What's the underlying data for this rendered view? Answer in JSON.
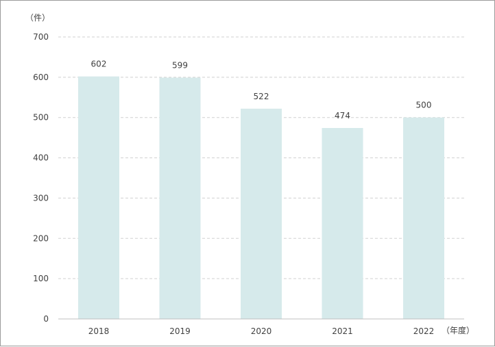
{
  "chart_data": {
    "type": "bar",
    "categories": [
      "2018",
      "2019",
      "2020",
      "2021",
      "2022"
    ],
    "values": [
      602,
      599,
      522,
      474,
      500
    ],
    "data_labels": [
      "602",
      "599",
      "522",
      "474",
      "500"
    ],
    "y_unit": "（件）",
    "x_unit": "（年度）",
    "ylim": [
      0,
      700
    ],
    "yticks": [
      "0",
      "100",
      "200",
      "300",
      "400",
      "500",
      "600",
      "700"
    ],
    "grid": true,
    "grid_style": "dashed",
    "bar_color": "#d6eaeb",
    "grid_color": "#d0d0d0",
    "axis_color": "#bfbfbf",
    "text_color": "#404040"
  }
}
